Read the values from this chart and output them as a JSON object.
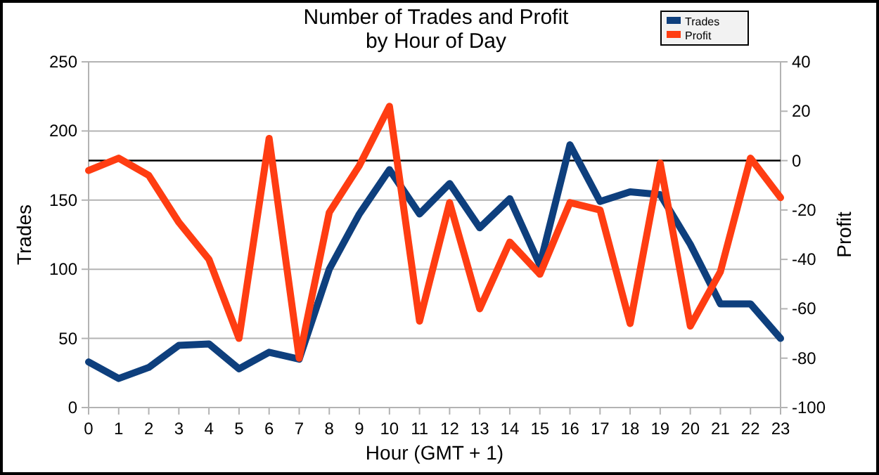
{
  "chart_data": {
    "type": "line",
    "title": "Number of Trades and Profit\nby Hour of Day",
    "xlabel": "Hour (GMT + 1)",
    "ylabel": "Trades",
    "y2label": "Profit",
    "x": [
      0,
      1,
      2,
      3,
      4,
      5,
      6,
      7,
      8,
      9,
      10,
      11,
      12,
      13,
      14,
      15,
      16,
      17,
      18,
      19,
      20,
      21,
      22,
      23
    ],
    "xlim": [
      0,
      23
    ],
    "xticks": [
      0,
      1,
      2,
      3,
      4,
      5,
      6,
      7,
      8,
      9,
      10,
      11,
      12,
      13,
      14,
      15,
      16,
      17,
      18,
      19,
      20,
      21,
      22,
      23
    ],
    "ylim": [
      0,
      250
    ],
    "yticks": [
      0,
      50,
      100,
      150,
      200,
      250
    ],
    "y2lim": [
      -100,
      40
    ],
    "y2ticks": [
      -100,
      -80,
      -60,
      -40,
      -20,
      0,
      20,
      40
    ],
    "grid": "y",
    "legend": "top right",
    "line_style": "solid",
    "ref_lines": [
      {
        "axis": "y2",
        "value": 0,
        "color": "#000000"
      }
    ],
    "series": [
      {
        "name": "Trades",
        "color": "#0e3f7d",
        "values": [
          33,
          21,
          29,
          45,
          46,
          28,
          40,
          35,
          100,
          140,
          172,
          140,
          162,
          130,
          151,
          103,
          190,
          149,
          156,
          154,
          118,
          75,
          75,
          50
        ]
      },
      {
        "name": "Profit",
        "color": "#ff3d12",
        "axis": "y2",
        "values": [
          -4,
          1,
          -6,
          -25,
          -40,
          -72,
          9,
          -80,
          -21,
          -2,
          22,
          -65,
          -17,
          -60,
          -33,
          -46,
          -17,
          -20,
          -66,
          -1,
          -67,
          -45,
          1,
          -15
        ]
      }
    ]
  }
}
